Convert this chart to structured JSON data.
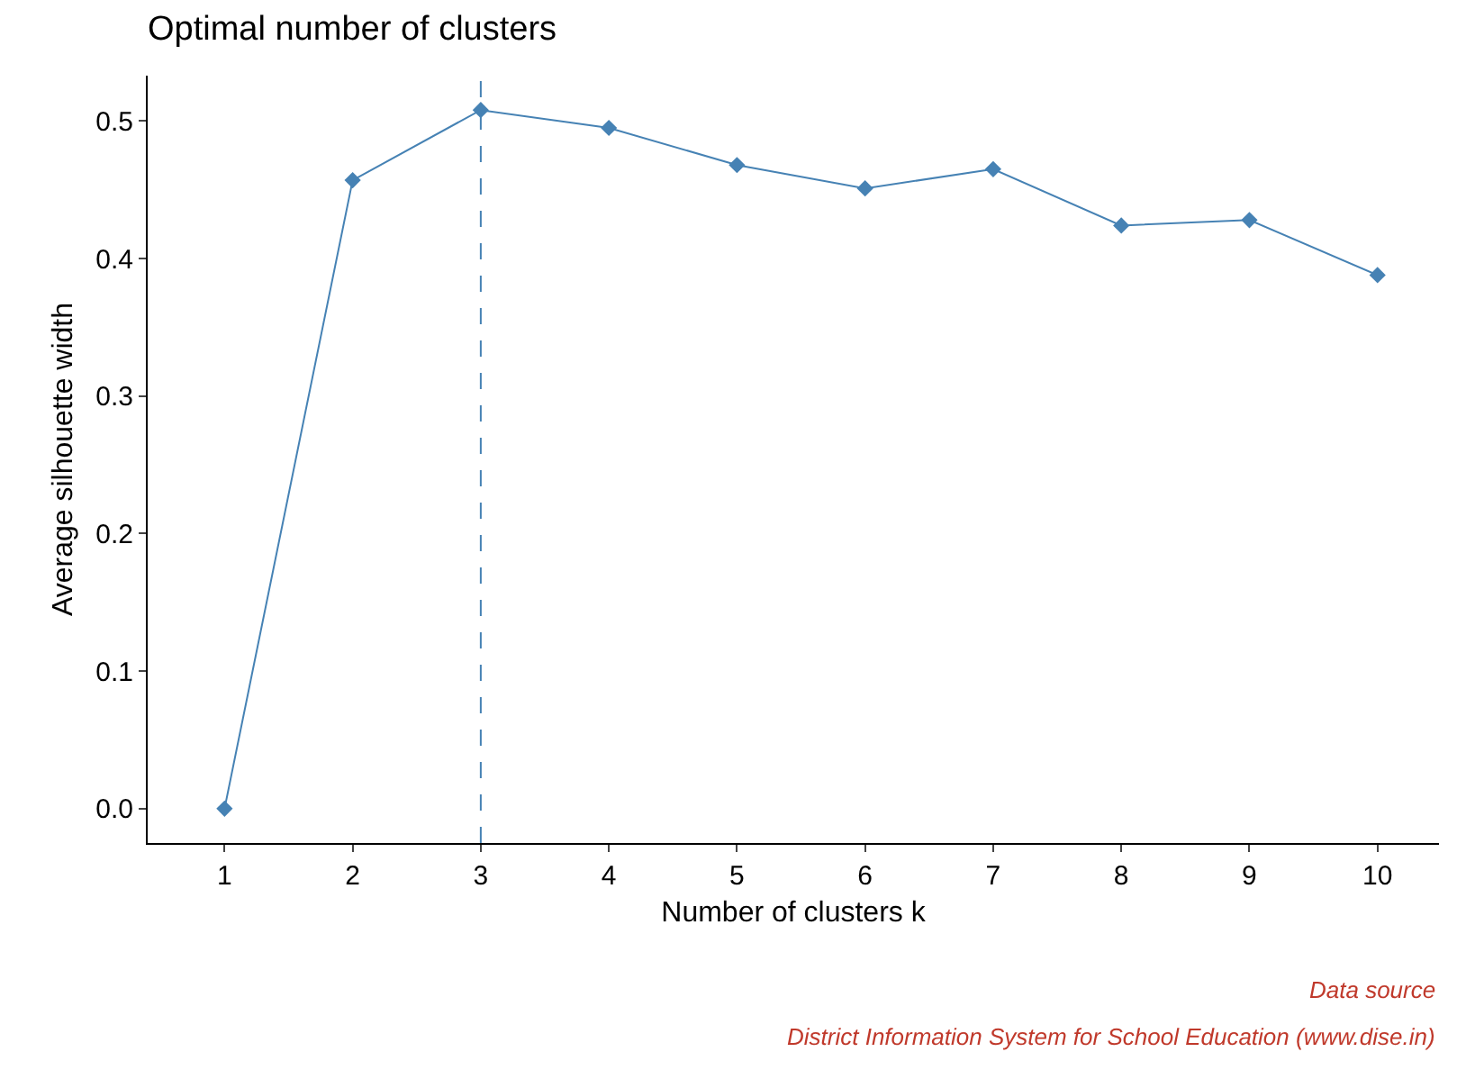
{
  "chart_data": {
    "type": "line",
    "title": "Optimal number of clusters",
    "xlabel": "Number of clusters k",
    "ylabel": "Average silhouette width",
    "categories": [
      "1",
      "2",
      "3",
      "4",
      "5",
      "6",
      "7",
      "8",
      "9",
      "10"
    ],
    "series": [
      {
        "color": "#4682b4",
        "values": [
          0,
          0.457,
          0.508,
          0.495,
          0.468,
          0.451,
          0.465,
          0.424,
          0.428,
          0.388
        ]
      }
    ],
    "ylim": [
      -0.025,
      0.533
    ],
    "yticks": [
      {
        "value": 0,
        "label": "0.0"
      },
      {
        "value": 0.1,
        "label": "0.1"
      },
      {
        "value": 0.2,
        "label": "0.2"
      },
      {
        "value": 0.3,
        "label": "0.3"
      },
      {
        "value": 0.4,
        "label": "0.4"
      },
      {
        "value": 0.5,
        "label": "0.5"
      }
    ],
    "ref_lines": [
      {
        "axis": "x",
        "value": "3",
        "color": "#4682b4",
        "line_style": "dashed"
      }
    ],
    "marker": "diamond",
    "line_style": "solid",
    "grid": false,
    "annotations": [
      "Data source",
      "District Information System for School Education (www.dise.in)"
    ]
  }
}
